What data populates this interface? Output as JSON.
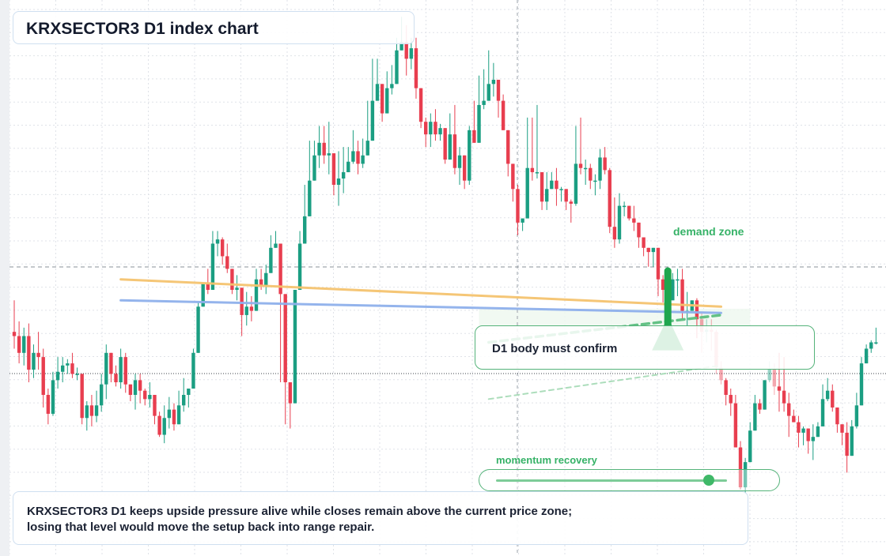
{
  "title": "KRXSECTOR3 D1 index chart",
  "note_lines": [
    "KRXSECTOR3 D1 keeps upside pressure alive while closes remain above the current price zone;",
    "losing that level would move the setup back into range repair."
  ],
  "labels": {
    "demand_zone": "demand zone",
    "confirm": "D1 body must confirm",
    "momentum": "momentum recovery"
  },
  "momentum": {
    "value": 0.92
  },
  "colors": {
    "up": "#1b9e82",
    "down": "#e83e4f",
    "grid": "#dfe2e8",
    "orange_line": "#f5c36f",
    "blue_line": "#8fb0ec",
    "green_accent": "#1fa64e",
    "zone_fill": "#eef8f0"
  },
  "chart_data": {
    "type": "candlestick",
    "title": "KRXSECTOR3 D1 index chart",
    "xlabel": "",
    "ylabel": "",
    "grid": true,
    "candles_ohlc": [
      [
        330,
        328,
        345,
        322
      ],
      [
        328,
        320,
        335,
        315
      ],
      [
        320,
        328,
        332,
        314
      ],
      [
        328,
        312,
        334,
        306
      ],
      [
        312,
        320,
        324,
        308
      ],
      [
        320,
        318,
        330,
        312
      ],
      [
        318,
        300,
        322,
        294
      ],
      [
        300,
        291,
        303,
        286
      ],
      [
        291,
        307,
        311,
        290
      ],
      [
        307,
        311,
        318,
        303
      ],
      [
        311,
        314,
        318,
        306
      ],
      [
        314,
        315,
        317,
        310
      ],
      [
        315,
        310,
        320,
        308
      ],
      [
        310,
        310,
        313,
        307
      ],
      [
        310,
        289,
        308,
        286
      ],
      [
        289,
        295,
        297,
        283
      ],
      [
        295,
        290,
        300,
        285
      ],
      [
        290,
        295,
        302,
        287
      ],
      [
        295,
        305,
        310,
        292
      ],
      [
        305,
        320,
        324,
        298
      ],
      [
        320,
        310,
        316,
        306
      ],
      [
        310,
        306,
        314,
        304
      ],
      [
        306,
        318,
        322,
        303
      ],
      [
        318,
        305,
        320,
        301
      ],
      [
        305,
        300,
        304,
        297
      ],
      [
        300,
        307,
        310,
        293
      ],
      [
        307,
        302,
        310,
        296
      ],
      [
        302,
        298,
        303,
        295
      ],
      [
        298,
        300,
        306,
        294
      ],
      [
        300,
        290,
        292,
        286
      ],
      [
        290,
        281,
        292,
        280
      ],
      [
        281,
        289,
        295,
        277
      ],
      [
        289,
        293,
        299,
        284
      ],
      [
        293,
        286,
        296,
        283
      ],
      [
        286,
        295,
        302,
        287
      ],
      [
        295,
        300,
        308,
        292
      ],
      [
        300,
        303,
        300,
        294
      ],
      [
        303,
        320,
        322,
        308
      ],
      [
        320,
        342,
        344,
        334
      ],
      [
        342,
        353,
        348,
        342
      ],
      [
        353,
        350,
        360,
        348
      ],
      [
        350,
        372,
        378,
        368
      ],
      [
        372,
        374,
        378,
        366
      ],
      [
        374,
        366,
        375,
        362
      ],
      [
        366,
        360,
        372,
        358
      ],
      [
        360,
        350,
        358,
        348
      ],
      [
        350,
        351,
        357,
        345
      ],
      [
        351,
        338,
        338,
        328
      ],
      [
        338,
        342,
        349,
        333
      ],
      [
        342,
        340,
        347,
        335
      ],
      [
        340,
        355,
        360,
        348
      ],
      [
        355,
        352,
        360,
        350
      ],
      [
        352,
        358,
        362,
        348
      ],
      [
        358,
        370,
        376,
        372
      ],
      [
        370,
        372,
        378,
        370
      ],
      [
        372,
        348,
        355,
        306
      ],
      [
        348,
        306,
        313,
        286
      ],
      [
        306,
        296,
        305,
        284
      ],
      [
        296,
        350,
        346,
        320
      ],
      [
        350,
        372,
        378,
        360
      ],
      [
        372,
        385,
        400,
        378
      ],
      [
        385,
        402,
        421,
        400
      ],
      [
        402,
        414,
        421,
        410
      ],
      [
        414,
        420,
        428,
        408
      ],
      [
        420,
        414,
        428,
        410
      ],
      [
        414,
        415,
        430,
        405
      ],
      [
        415,
        400,
        413,
        395
      ],
      [
        400,
        403,
        416,
        390
      ],
      [
        403,
        406,
        418,
        396
      ],
      [
        406,
        411,
        418,
        406
      ],
      [
        411,
        416,
        426,
        410
      ],
      [
        416,
        410,
        421,
        405
      ],
      [
        410,
        414,
        422,
        408
      ],
      [
        414,
        421,
        440,
        416
      ],
      [
        421,
        440,
        460,
        432
      ],
      [
        440,
        448,
        460,
        442
      ],
      [
        448,
        434,
        445,
        430
      ],
      [
        434,
        446,
        454,
        440
      ],
      [
        446,
        448,
        457,
        443
      ],
      [
        448,
        464,
        470,
        450
      ],
      [
        464,
        468,
        480,
        464
      ],
      [
        468,
        460,
        476,
        452
      ],
      [
        460,
        465,
        470,
        455
      ],
      [
        465,
        446,
        470,
        441
      ],
      [
        446,
        430,
        438,
        427
      ],
      [
        430,
        424,
        432,
        418
      ],
      [
        424,
        430,
        434,
        418
      ],
      [
        430,
        424,
        436,
        421
      ],
      [
        424,
        427,
        429,
        421
      ],
      [
        427,
        412,
        427,
        410
      ],
      [
        412,
        424,
        434,
        413
      ],
      [
        424,
        408,
        438,
        405
      ],
      [
        408,
        414,
        418,
        400
      ],
      [
        414,
        402,
        410,
        398
      ],
      [
        402,
        426,
        428,
        400
      ],
      [
        426,
        420,
        440,
        420
      ],
      [
        420,
        438,
        452,
        434
      ],
      [
        438,
        440,
        455,
        436
      ],
      [
        440,
        448,
        464,
        440
      ],
      [
        448,
        450,
        458,
        442
      ],
      [
        450,
        440,
        448,
        432
      ],
      [
        440,
        426,
        443,
        432
      ],
      [
        426,
        410,
        418,
        404
      ],
      [
        410,
        398,
        400,
        392
      ],
      [
        398,
        382,
        400,
        376
      ],
      [
        382,
        384,
        382,
        378
      ],
      [
        384,
        408,
        432,
        406
      ],
      [
        408,
        406,
        432,
        402
      ],
      [
        406,
        406,
        438,
        403
      ],
      [
        406,
        392,
        405,
        388
      ],
      [
        392,
        398,
        406,
        388
      ],
      [
        398,
        402,
        406,
        400
      ],
      [
        402,
        398,
        408,
        390
      ],
      [
        398,
        398,
        399,
        392
      ],
      [
        398,
        392,
        396,
        388
      ],
      [
        392,
        391,
        393,
        382
      ],
      [
        391,
        410,
        428,
        390
      ],
      [
        410,
        408,
        432,
        405
      ],
      [
        408,
        408,
        412,
        400
      ],
      [
        408,
        402,
        410,
        398
      ],
      [
        402,
        402,
        405,
        395
      ],
      [
        402,
        413,
        417,
        398
      ],
      [
        413,
        407,
        418,
        405
      ],
      [
        407,
        380,
        408,
        377
      ],
      [
        380,
        374,
        394,
        370
      ],
      [
        374,
        390,
        396,
        372
      ],
      [
        390,
        390,
        392,
        385
      ],
      [
        390,
        384,
        388,
        383
      ],
      [
        384,
        382,
        390,
        378
      ],
      [
        382,
        375,
        382,
        370
      ],
      [
        375,
        370,
        375,
        366
      ],
      [
        370,
        368,
        369,
        361
      ],
      [
        368,
        370,
        369,
        361
      ],
      [
        370,
        355,
        355,
        347
      ],
      [
        355,
        350,
        357,
        344
      ],
      [
        350,
        345,
        350,
        339
      ],
      [
        345,
        355,
        358,
        345
      ],
      [
        355,
        355,
        360,
        347
      ],
      [
        355,
        340,
        360,
        336
      ],
      [
        340,
        340,
        349,
        333
      ],
      [
        340,
        345,
        345,
        340
      ],
      [
        345,
        336,
        346,
        327
      ],
      [
        336,
        330,
        339,
        320
      ],
      [
        330,
        331,
        336,
        325
      ],
      [
        331,
        330,
        336,
        321
      ],
      [
        330,
        313,
        331,
        310
      ],
      [
        313,
        307,
        316,
        305
      ],
      [
        307,
        300,
        308,
        295
      ],
      [
        300,
        296,
        303,
        290
      ],
      [
        296,
        275,
        300,
        275
      ],
      [
        275,
        256,
        278,
        255
      ],
      [
        256,
        268,
        270,
        253
      ],
      [
        268,
        283,
        287,
        270
      ],
      [
        283,
        296,
        300,
        285
      ],
      [
        296,
        293,
        298,
        291
      ],
      [
        293,
        307,
        306,
        294
      ],
      [
        307,
        312,
        316,
        306
      ],
      [
        312,
        304,
        315,
        300
      ],
      [
        304,
        302,
        320,
        292
      ],
      [
        302,
        296,
        318,
        292
      ],
      [
        296,
        290,
        301,
        280
      ],
      [
        290,
        287,
        293,
        287
      ],
      [
        287,
        282,
        290,
        275
      ],
      [
        282,
        284,
        285,
        276
      ],
      [
        284,
        278,
        284,
        272
      ],
      [
        278,
        280,
        286,
        269
      ],
      [
        280,
        285,
        287,
        280
      ],
      [
        285,
        298,
        305,
        290
      ],
      [
        298,
        302,
        308,
        297
      ],
      [
        302,
        294,
        305,
        292
      ],
      [
        294,
        286,
        290,
        282
      ],
      [
        286,
        282,
        286,
        276
      ],
      [
        282,
        271,
        287,
        263
      ],
      [
        271,
        285,
        288,
        278
      ],
      [
        285,
        295,
        301,
        284
      ],
      [
        295,
        315,
        318,
        300
      ],
      [
        315,
        322,
        324,
        318
      ],
      [
        322,
        325,
        326,
        320
      ],
      [
        325,
        325,
        332,
        324
      ]
    ],
    "lines": [
      {
        "name": "",
        "color": "orange",
        "from": [
          22,
          355
        ],
        "to": [
          146,
          342
        ]
      },
      {
        "name": "",
        "color": "blue",
        "from": [
          22,
          345
        ],
        "to": [
          146,
          339
        ]
      },
      {
        "name": "",
        "color": "green-dashed",
        "from": [
          98,
          325
        ],
        "to": [
          146,
          338
        ]
      },
      {
        "name": "",
        "color": "green-dashed-light",
        "from": [
          98,
          298
        ],
        "to": [
          146,
          314
        ]
      }
    ],
    "demand_zone": {
      "x_range": [
        96,
        152
      ],
      "y_range": [
        331,
        341
      ]
    },
    "arrow": {
      "x": 135,
      "from_y": 359,
      "to_y": 337
    }
  }
}
